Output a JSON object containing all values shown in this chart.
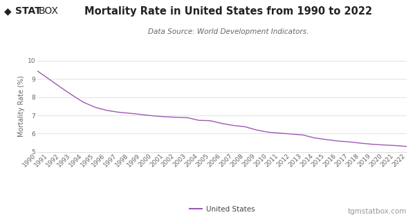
{
  "title": "Mortality Rate in United States from 1990 to 2022",
  "subtitle": "Data Source: World Development Indicators.",
  "ylabel": "Mortality Rate (%)",
  "legend_label": "United States",
  "line_color": "#9b59b6",
  "background_color": "#ffffff",
  "grid_color": "#dddddd",
  "years": [
    1990,
    1991,
    1992,
    1993,
    1994,
    1995,
    1996,
    1997,
    1998,
    1999,
    2000,
    2001,
    2002,
    2003,
    2004,
    2005,
    2006,
    2007,
    2008,
    2009,
    2010,
    2011,
    2012,
    2013,
    2014,
    2015,
    2016,
    2017,
    2018,
    2019,
    2020,
    2021,
    2022
  ],
  "values": [
    9.44,
    9.0,
    8.55,
    8.12,
    7.72,
    7.45,
    7.28,
    7.18,
    7.12,
    7.05,
    6.98,
    6.93,
    6.9,
    6.88,
    6.73,
    6.71,
    6.56,
    6.45,
    6.38,
    6.2,
    6.08,
    6.03,
    5.98,
    5.93,
    5.77,
    5.68,
    5.6,
    5.55,
    5.48,
    5.42,
    5.38,
    5.35,
    5.3
  ],
  "ylim": [
    5,
    10
  ],
  "yticks": [
    5,
    6,
    7,
    8,
    9,
    10
  ],
  "watermark": "tgmstatbox.com",
  "title_fontsize": 10.5,
  "subtitle_fontsize": 7.5,
  "ylabel_fontsize": 7,
  "tick_fontsize": 6.5,
  "legend_fontsize": 7.5,
  "watermark_fontsize": 7.5,
  "logo_fontsize": 10
}
